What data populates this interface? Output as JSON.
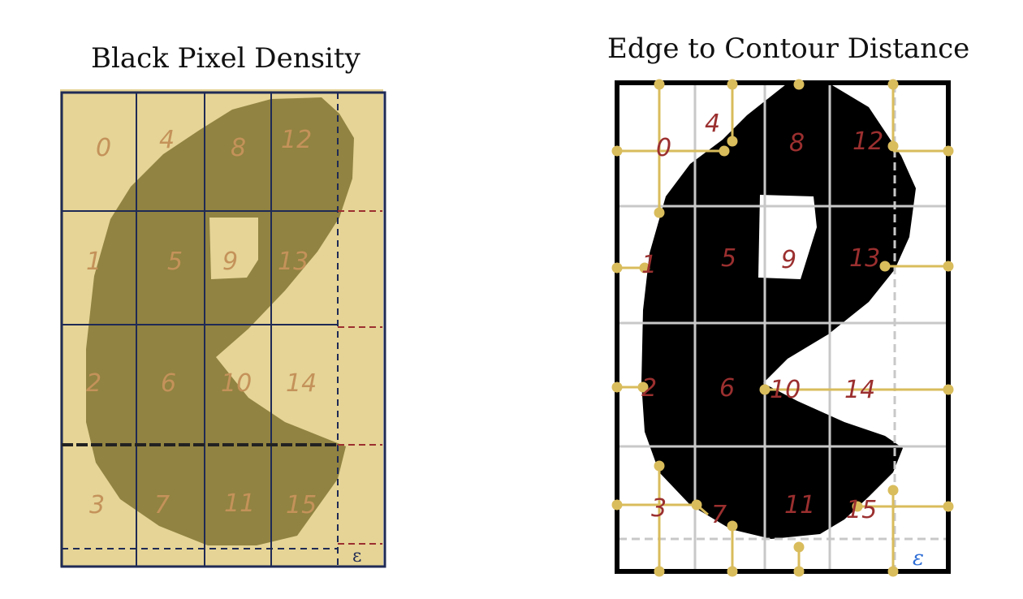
{
  "left_panel": {
    "title": "Black Pixel Density",
    "cell_labels": [
      "0",
      "1",
      "2",
      "3",
      "4",
      "5",
      "6",
      "7",
      "8",
      "9",
      "10",
      "11",
      "12",
      "13",
      "14",
      "15"
    ],
    "margin_label": "ε",
    "colors": {
      "background": "#e5d496",
      "glyph": "#8a7c3a",
      "grid": "#1f2a55",
      "label": "#c4925a",
      "margin_mark": "#9c2f2f"
    }
  },
  "right_panel": {
    "title": "Edge to Contour Distance",
    "cell_labels": [
      "0",
      "1",
      "2",
      "3",
      "4",
      "5",
      "6",
      "7",
      "8",
      "9",
      "10",
      "11",
      "12",
      "13",
      "14",
      "15"
    ],
    "margin_label": "ε",
    "colors": {
      "background": "#ffffff",
      "glyph": "#000000",
      "grid": "#c8c8c8",
      "label": "#9b2f2f",
      "distance_line": "#d9bc5c",
      "epsilon_label": "#2f6fd6"
    }
  }
}
